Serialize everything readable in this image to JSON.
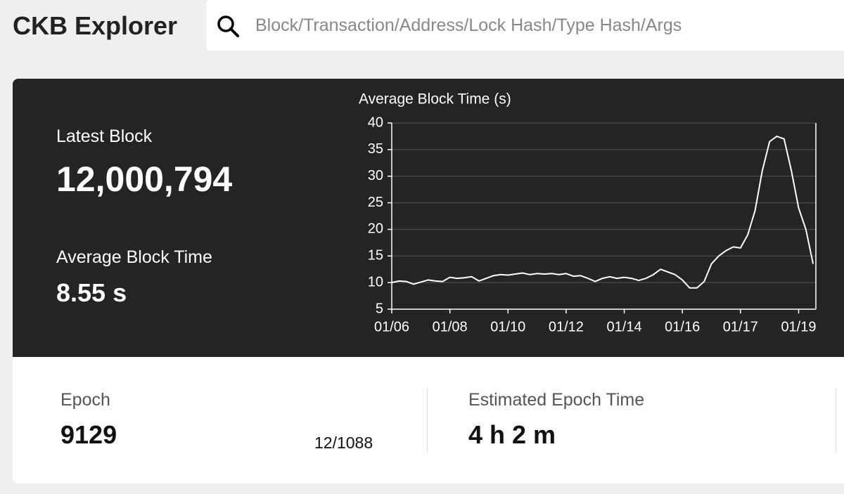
{
  "header": {
    "logo": "CKB Explorer",
    "search_placeholder": "Block/Transaction/Address/Lock Hash/Type Hash/Args"
  },
  "stats": {
    "latest_block_label": "Latest Block",
    "latest_block": "12,000,794",
    "avg_block_time_label": "Average Block Time",
    "avg_block_time": "8.55 s",
    "epoch_label": "Epoch",
    "epoch": "9129",
    "epoch_progress": "12/1088",
    "epoch_time_label": "Estimated Epoch Time",
    "epoch_time": "4 h 2 m"
  },
  "chart_data": {
    "type": "line",
    "title": "Average Block Time (s)",
    "categories": [
      "01/06",
      null,
      null,
      null,
      null,
      null,
      null,
      null,
      "01/08",
      null,
      null,
      null,
      null,
      null,
      null,
      null,
      "01/10",
      null,
      null,
      null,
      null,
      null,
      null,
      null,
      "01/12",
      null,
      null,
      null,
      null,
      null,
      null,
      null,
      "01/14",
      null,
      null,
      null,
      null,
      null,
      null,
      null,
      "01/16",
      null,
      null,
      null,
      null,
      null,
      null,
      null,
      "01/17",
      null,
      null,
      null,
      null,
      null,
      null,
      null,
      "01/19",
      null,
      null
    ],
    "values": [
      10,
      10.3,
      10.2,
      9.7,
      10.1,
      10.5,
      10.3,
      10.2,
      11,
      10.8,
      10.9,
      11.1,
      10.3,
      10.8,
      11.3,
      11.5,
      11.4,
      11.6,
      11.8,
      11.5,
      11.7,
      11.6,
      11.7,
      11.5,
      11.7,
      11.2,
      11.3,
      10.8,
      10.2,
      10.8,
      11.1,
      10.8,
      11,
      10.8,
      10.4,
      10.8,
      11.5,
      12.5,
      12,
      11.5,
      10.5,
      9,
      9,
      10.2,
      13.5,
      15,
      16,
      16.7,
      16.5,
      19,
      23.5,
      31,
      36.5,
      37.5,
      37,
      31,
      24,
      20,
      13.5
    ],
    "color": "#ffffff",
    "ylim": [
      5,
      40
    ],
    "yticks": [
      5,
      10,
      15,
      20,
      25,
      30,
      35,
      40
    ],
    "grid": true
  }
}
